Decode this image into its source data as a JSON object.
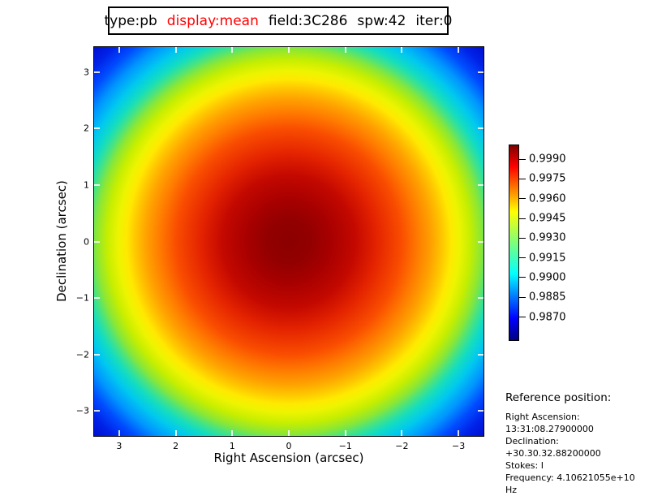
{
  "title_box": {
    "segments": [
      {
        "text": "type:pb",
        "color": "#000000"
      },
      {
        "text": "display:mean",
        "color": "#ff0000"
      },
      {
        "text": "field:3C286",
        "color": "#000000"
      },
      {
        "text": "spw:42",
        "color": "#000000"
      },
      {
        "text": "iter:0",
        "color": "#000000"
      }
    ]
  },
  "plot": {
    "xlabel": "Right Ascension (arcsec)",
    "ylabel": "Declination (arcsec)",
    "x_tick_labels": [
      "3",
      "2",
      "1",
      "0",
      "−1",
      "−2",
      "−3"
    ],
    "y_tick_labels": [
      "3",
      "2",
      "1",
      "0",
      "−1",
      "−2",
      "−3"
    ]
  },
  "colorbar": {
    "colormap": "jet",
    "tick_labels": [
      "0.9990",
      "0.9975",
      "0.9960",
      "0.9945",
      "0.9930",
      "0.9915",
      "0.9900",
      "0.9885",
      "0.9870"
    ]
  },
  "reference": {
    "heading": "Reference position:",
    "lines": [
      "Right Ascension: 13:31:08.27900000",
      "Declination: +30.30.32.88200000",
      "Stokes: I",
      "Frequency: 4.10621055e+10 Hz"
    ]
  },
  "chart_data": {
    "type": "heatmap",
    "title": "type:pb display:mean field:3C286 spw:42 iter:0",
    "xlabel": "Right Ascension (arcsec)",
    "ylabel": "Declination (arcsec)",
    "x_ticks": [
      3,
      2,
      1,
      0,
      -1,
      -2,
      -3
    ],
    "y_ticks": [
      3,
      2,
      1,
      0,
      -1,
      -2,
      -3
    ],
    "xlim": [
      3.443,
      -3.443
    ],
    "ylim": [
      -3.443,
      3.443
    ],
    "grid": false,
    "colormap": "jet",
    "colorbar_position": "right",
    "colorbar_ticks": [
      0.999,
      0.9975,
      0.996,
      0.9945,
      0.993,
      0.9915,
      0.99,
      0.9885,
      0.987
    ],
    "colorbar_range": [
      0.98525,
      1.00005
    ],
    "data_description": "Radially symmetric primary-beam (pb) mean response centered at (0,0): value ≈ 1.000 at the center, decreasing monotonically to ≈ 0.9853 at the field corners (radius ≈ 4.87 arcsec)",
    "center_value": 1.0,
    "edge_midpoint_value": 0.9925,
    "corner_value": 0.9853
  },
  "colors": {
    "title_highlight": "#ff0000",
    "axis_text": "#000000",
    "plot_border": "#000000",
    "background": "#ffffff"
  }
}
